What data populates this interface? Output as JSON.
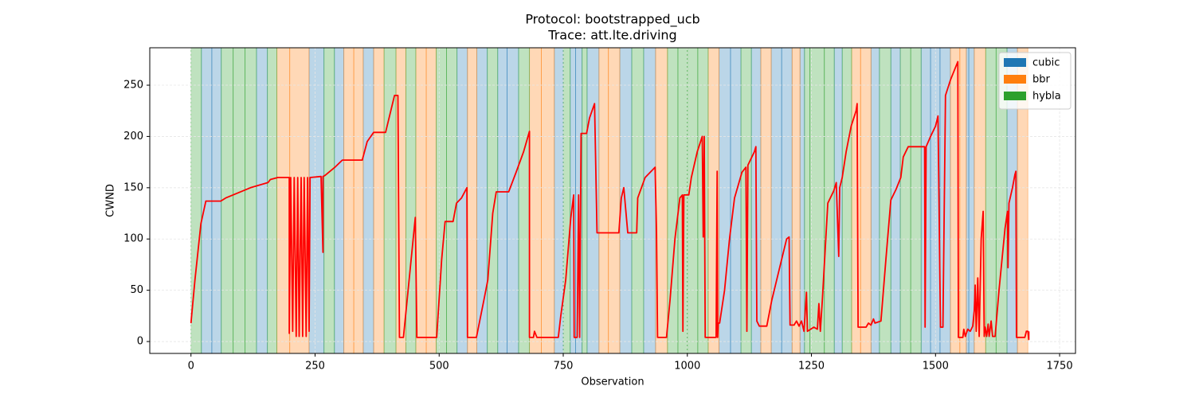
{
  "chart_data": {
    "type": "line",
    "title": "Protocol: bootstrapped_ucb",
    "subtitle": "Trace: att.lte.driving",
    "x_label": "Observation",
    "y_label": "CWND",
    "xlim": [
      -83,
      1782
    ],
    "ylim": [
      -11.6,
      286.5
    ],
    "xticks": [
      0,
      250,
      500,
      750,
      1000,
      1250,
      1500,
      1750
    ],
    "yticks": [
      0,
      50,
      100,
      150,
      200,
      250
    ],
    "grid": true,
    "legend": "upper right",
    "series": [
      {
        "name": "cubic",
        "color": "#1f77b4",
        "spans": [
          [
            21,
            42
          ],
          [
            42,
            61
          ],
          [
            132,
            154
          ],
          [
            238,
            268
          ],
          [
            289,
            308
          ],
          [
            347,
            368
          ],
          [
            536,
            557
          ],
          [
            576,
            597
          ],
          [
            618,
            637
          ],
          [
            637,
            660
          ],
          [
            732,
            750
          ],
          [
            764,
            775
          ],
          [
            775,
            788
          ],
          [
            798,
            822
          ],
          [
            864,
            888
          ],
          [
            912,
            936
          ],
          [
            1064,
            1087
          ],
          [
            1087,
            1108
          ],
          [
            1129,
            1148
          ],
          [
            1169,
            1190
          ],
          [
            1190,
            1211
          ],
          [
            1227,
            1236
          ],
          [
            1296,
            1312
          ],
          [
            1370,
            1387
          ],
          [
            1410,
            1429
          ],
          [
            1471,
            1490
          ],
          [
            1490,
            1509
          ],
          [
            1509,
            1530
          ],
          [
            1562,
            1567
          ],
          [
            1567,
            1578
          ],
          [
            1644,
            1665
          ]
        ]
      },
      {
        "name": "bbr",
        "color": "#ff7f0e",
        "spans": [
          [
            173,
            199
          ],
          [
            199,
            238
          ],
          [
            308,
            328
          ],
          [
            328,
            347
          ],
          [
            368,
            389
          ],
          [
            413,
            433
          ],
          [
            453,
            474
          ],
          [
            474,
            494
          ],
          [
            557,
            576
          ],
          [
            682,
            706
          ],
          [
            706,
            732
          ],
          [
            822,
            841
          ],
          [
            841,
            864
          ],
          [
            936,
            960
          ],
          [
            1042,
            1064
          ],
          [
            1148,
            1169
          ],
          [
            1211,
            1227
          ],
          [
            1331,
            1349
          ],
          [
            1349,
            1370
          ],
          [
            1530,
            1549
          ],
          [
            1549,
            1562
          ],
          [
            1578,
            1601
          ],
          [
            1665,
            1686
          ]
        ]
      },
      {
        "name": "hybla",
        "color": "#2ca02c",
        "spans": [
          [
            0,
            21
          ],
          [
            61,
            85
          ],
          [
            85,
            109
          ],
          [
            109,
            132
          ],
          [
            154,
            173
          ],
          [
            268,
            289
          ],
          [
            389,
            413
          ],
          [
            433,
            453
          ],
          [
            494,
            515
          ],
          [
            515,
            536
          ],
          [
            597,
            618
          ],
          [
            660,
            682
          ],
          [
            750,
            764
          ],
          [
            788,
            798
          ],
          [
            888,
            912
          ],
          [
            960,
            981
          ],
          [
            981,
            1000
          ],
          [
            1000,
            1021
          ],
          [
            1021,
            1042
          ],
          [
            1108,
            1129
          ],
          [
            1236,
            1247
          ],
          [
            1247,
            1276
          ],
          [
            1276,
            1296
          ],
          [
            1312,
            1331
          ],
          [
            1387,
            1410
          ],
          [
            1429,
            1450
          ],
          [
            1450,
            1471
          ],
          [
            1601,
            1622
          ],
          [
            1622,
            1644
          ]
        ]
      }
    ],
    "line": {
      "color": "red",
      "x": [
        0,
        8,
        20,
        30,
        60,
        70,
        120,
        155,
        160,
        175,
        198,
        198,
        201,
        205,
        208,
        212,
        215,
        218,
        222,
        225,
        228,
        232,
        235,
        238,
        240,
        262,
        266,
        266,
        270,
        290,
        305,
        345,
        355,
        368,
        392,
        410,
        417,
        420,
        428,
        452,
        455,
        455,
        495,
        505,
        512,
        528,
        535,
        545,
        556,
        557,
        575,
        590,
        598,
        608,
        615,
        640,
        655,
        670,
        682,
        682,
        690,
        692,
        697,
        740,
        745,
        755,
        765,
        771,
        772,
        778,
        781,
        783,
        786,
        797,
        803,
        813,
        818,
        862,
        867,
        872,
        880,
        898,
        900,
        915,
        935,
        938,
        940,
        958,
        965,
        975,
        985,
        990,
        991,
        993,
        1003,
        1008,
        1020,
        1030,
        1032,
        1034,
        1036,
        1058,
        1060,
        1061,
        1062,
        1065,
        1075,
        1085,
        1095,
        1110,
        1118,
        1120,
        1122,
        1135,
        1138,
        1140,
        1145,
        1160,
        1170,
        1185,
        1200,
        1205,
        1207,
        1215,
        1220,
        1225,
        1230,
        1235,
        1240,
        1242,
        1255,
        1262,
        1265,
        1268,
        1272,
        1283,
        1295,
        1300,
        1305,
        1307,
        1312,
        1320,
        1330,
        1340,
        1342,
        1344,
        1360,
        1365,
        1370,
        1375,
        1378,
        1390,
        1400,
        1410,
        1420,
        1430,
        1435,
        1445,
        1478,
        1479,
        1481,
        1490,
        1500,
        1505,
        1510,
        1515,
        1520,
        1530,
        1545,
        1546,
        1555,
        1557,
        1560,
        1565,
        1570,
        1575,
        1578,
        1580,
        1582,
        1585,
        1588,
        1592,
        1596,
        1598,
        1600,
        1603,
        1606,
        1608,
        1612,
        1615,
        1620,
        1628,
        1636,
        1640,
        1645,
        1646,
        1648,
        1655,
        1660,
        1662,
        1663,
        1680,
        1683,
        1686,
        1688,
        1688
      ],
      "y": [
        18,
        60,
        115,
        137,
        137,
        140,
        150,
        155,
        158,
        160,
        160,
        8,
        160,
        10,
        160,
        5,
        160,
        5,
        160,
        5,
        160,
        5,
        160,
        10,
        160,
        161,
        87,
        161,
        162,
        170,
        177,
        177,
        195,
        204,
        204,
        240,
        240,
        4,
        4,
        121,
        10,
        4,
        4,
        80,
        117,
        117,
        135,
        140,
        150,
        4,
        4,
        40,
        60,
        125,
        146,
        146,
        165,
        185,
        205,
        4,
        4,
        10,
        4,
        4,
        25,
        60,
        120,
        143,
        4,
        4,
        143,
        4,
        203,
        203,
        218,
        232,
        106,
        106,
        140,
        150,
        106,
        106,
        140,
        160,
        170,
        106,
        4,
        4,
        40,
        100,
        140,
        143,
        10,
        143,
        143,
        160,
        185,
        200,
        102,
        200,
        4,
        4,
        166,
        4,
        18,
        18,
        50,
        100,
        140,
        165,
        170,
        10,
        172,
        185,
        190,
        20,
        15,
        15,
        40,
        70,
        100,
        102,
        16,
        16,
        20,
        15,
        20,
        10,
        48,
        10,
        14,
        12,
        37,
        10,
        40,
        135,
        147,
        155,
        83,
        150,
        160,
        185,
        210,
        225,
        232,
        14,
        14,
        18,
        16,
        22,
        18,
        20,
        80,
        138,
        148,
        160,
        180,
        190,
        190,
        14,
        190,
        200,
        210,
        220,
        14,
        14,
        240,
        255,
        273,
        4,
        4,
        12,
        5,
        12,
        10,
        15,
        30,
        55,
        10,
        62,
        5,
        100,
        127,
        5,
        14,
        5,
        17,
        5,
        20,
        5,
        5,
        50,
        90,
        110,
        127,
        72,
        135,
        150,
        163,
        166,
        4,
        4,
        10,
        10,
        2,
        10
      ]
    }
  }
}
